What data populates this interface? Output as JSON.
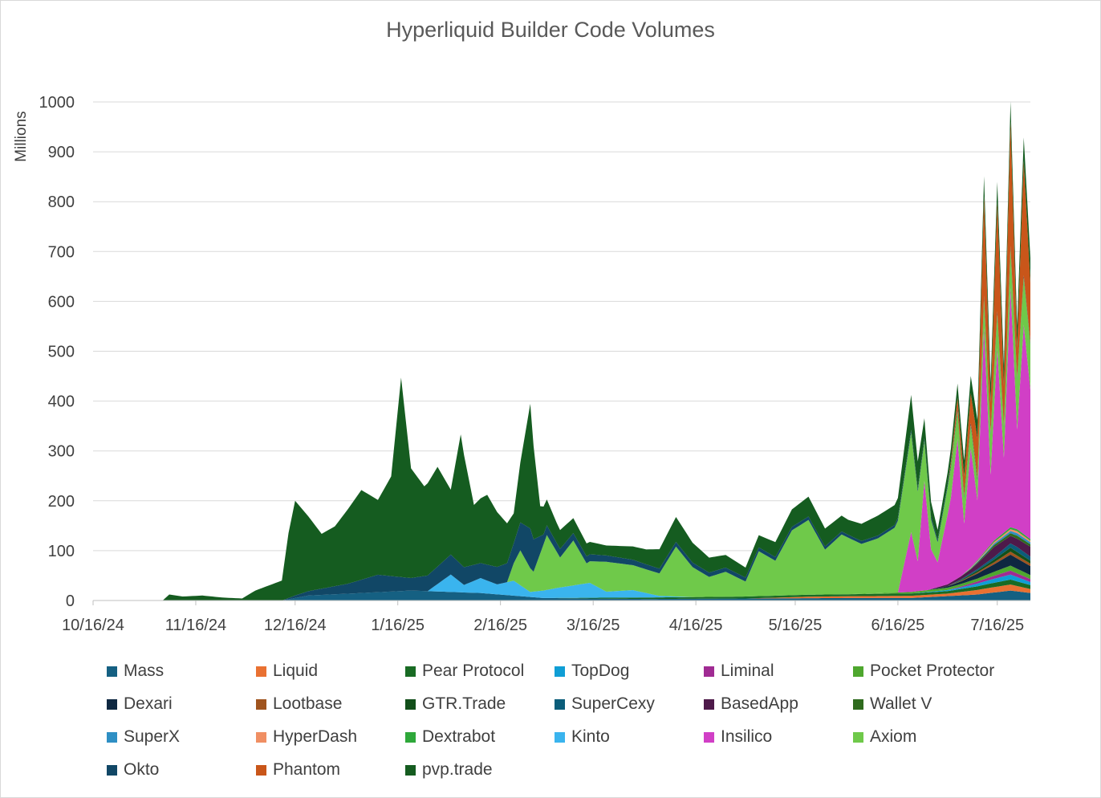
{
  "chart_data": {
    "type": "area",
    "stacked": true,
    "title": "Hyperliquid Builder Code Volumes",
    "ylabel": "Millions",
    "xlabel": "",
    "x_start": "2024-10-16",
    "x_end": "2025-07-26",
    "x_ticks": [
      "10/16/24",
      "11/16/24",
      "12/16/24",
      "1/16/25",
      "2/16/25",
      "3/16/25",
      "4/16/25",
      "5/16/25",
      "6/16/25",
      "7/16/25"
    ],
    "y_ticks": [
      0,
      100,
      200,
      300,
      400,
      500,
      600,
      700,
      800,
      900,
      1000
    ],
    "ylim": [
      0,
      1000
    ],
    "grid": true,
    "legend_position": "bottom",
    "legend": [
      {
        "name": "Mass",
        "color": "#156082"
      },
      {
        "name": "Liquid",
        "color": "#e97132"
      },
      {
        "name": "Pear Protocol",
        "color": "#196b24"
      },
      {
        "name": "TopDog",
        "color": "#0f9ed5"
      },
      {
        "name": "Liminal",
        "color": "#a02b93"
      },
      {
        "name": "Pocket Protector",
        "color": "#4ea72e"
      },
      {
        "name": "Dexari",
        "color": "#0e2841"
      },
      {
        "name": "Lootbase",
        "color": "#a0541e"
      },
      {
        "name": "GTR.Trade",
        "color": "#124f1a"
      },
      {
        "name": "SuperCexy",
        "color": "#0b5d7a"
      },
      {
        "name": "BasedApp",
        "color": "#4e1a4a"
      },
      {
        "name": "Wallet V",
        "color": "#2f6b1e"
      },
      {
        "name": "SuperX",
        "color": "#2e8fc4"
      },
      {
        "name": "HyperDash",
        "color": "#f08f63"
      },
      {
        "name": "Dextrabot",
        "color": "#2ea83a"
      },
      {
        "name": "Kinto",
        "color": "#3ab4ee"
      },
      {
        "name": "Insilico",
        "color": "#d13fc6"
      },
      {
        "name": "Axiom",
        "color": "#6fc94a"
      },
      {
        "name": "Okto",
        "color": "#114766"
      },
      {
        "name": "Phantom",
        "color": "#c9561a"
      },
      {
        "name": "pvp.trade",
        "color": "#155c20"
      }
    ],
    "series": [
      {
        "name": "Mass",
        "color": "#156082",
        "points": [
          [
            "2024-12-12",
            0
          ],
          [
            "2024-12-20",
            10
          ],
          [
            "2025-01-05",
            15
          ],
          [
            "2025-01-20",
            20
          ],
          [
            "2025-02-10",
            15
          ],
          [
            "2025-03-01",
            5
          ],
          [
            "2025-04-01",
            3
          ],
          [
            "2025-05-01",
            4
          ],
          [
            "2025-06-01",
            5
          ],
          [
            "2025-06-20",
            5
          ],
          [
            "2025-07-10",
            12
          ],
          [
            "2025-07-20",
            20
          ],
          [
            "2025-07-26",
            15
          ]
        ]
      },
      {
        "name": "Liquid",
        "color": "#e97132",
        "points": [
          [
            "2025-05-01",
            0
          ],
          [
            "2025-05-20",
            3
          ],
          [
            "2025-06-10",
            4
          ],
          [
            "2025-07-01",
            5
          ],
          [
            "2025-07-12",
            10
          ],
          [
            "2025-07-20",
            12
          ],
          [
            "2025-07-26",
            8
          ]
        ]
      },
      {
        "name": "Pear Protocol",
        "color": "#196b24",
        "points": [
          [
            "2025-03-01",
            0
          ],
          [
            "2025-04-01",
            3
          ],
          [
            "2025-05-01",
            4
          ],
          [
            "2025-06-01",
            4
          ],
          [
            "2025-07-01",
            5
          ],
          [
            "2025-07-20",
            10
          ],
          [
            "2025-07-26",
            8
          ]
        ]
      },
      {
        "name": "TopDog",
        "color": "#0f9ed5",
        "points": [
          [
            "2025-06-20",
            0
          ],
          [
            "2025-07-05",
            3
          ],
          [
            "2025-07-15",
            8
          ],
          [
            "2025-07-20",
            10
          ],
          [
            "2025-07-26",
            6
          ]
        ]
      },
      {
        "name": "Liminal",
        "color": "#a02b93",
        "points": [
          [
            "2025-07-01",
            0
          ],
          [
            "2025-07-10",
            4
          ],
          [
            "2025-07-20",
            8
          ],
          [
            "2025-07-26",
            6
          ]
        ]
      },
      {
        "name": "Pocket Protector",
        "color": "#4ea72e",
        "points": [
          [
            "2025-06-01",
            0
          ],
          [
            "2025-06-20",
            3
          ],
          [
            "2025-07-10",
            6
          ],
          [
            "2025-07-20",
            10
          ],
          [
            "2025-07-26",
            8
          ]
        ]
      },
      {
        "name": "Dexari",
        "color": "#0e2841",
        "points": [
          [
            "2025-06-25",
            0
          ],
          [
            "2025-07-05",
            5
          ],
          [
            "2025-07-15",
            15
          ],
          [
            "2025-07-20",
            22
          ],
          [
            "2025-07-26",
            18
          ]
        ]
      },
      {
        "name": "Lootbase",
        "color": "#a0541e",
        "points": [
          [
            "2025-07-01",
            0
          ],
          [
            "2025-07-12",
            3
          ],
          [
            "2025-07-20",
            6
          ],
          [
            "2025-07-26",
            5
          ]
        ]
      },
      {
        "name": "GTR.Trade",
        "color": "#124f1a",
        "points": [
          [
            "2025-07-01",
            0
          ],
          [
            "2025-07-12",
            4
          ],
          [
            "2025-07-20",
            8
          ],
          [
            "2025-07-26",
            6
          ]
        ]
      },
      {
        "name": "SuperCexy",
        "color": "#0b5d7a",
        "points": [
          [
            "2025-07-01",
            0
          ],
          [
            "2025-07-15",
            5
          ],
          [
            "2025-07-22",
            10
          ],
          [
            "2025-07-26",
            8
          ]
        ]
      },
      {
        "name": "BasedApp",
        "color": "#4e1a4a",
        "points": [
          [
            "2025-06-25",
            0
          ],
          [
            "2025-07-08",
            8
          ],
          [
            "2025-07-15",
            20
          ],
          [
            "2025-07-20",
            15
          ],
          [
            "2025-07-26",
            20
          ]
        ]
      },
      {
        "name": "Wallet V",
        "color": "#2f6b1e",
        "points": [
          [
            "2025-07-05",
            0
          ],
          [
            "2025-07-15",
            4
          ],
          [
            "2025-07-22",
            6
          ],
          [
            "2025-07-26",
            5
          ]
        ]
      },
      {
        "name": "SuperX",
        "color": "#2e8fc4",
        "points": [
          [
            "2025-07-05",
            0
          ],
          [
            "2025-07-15",
            3
          ],
          [
            "2025-07-22",
            5
          ],
          [
            "2025-07-26",
            4
          ]
        ]
      },
      {
        "name": "HyperDash",
        "color": "#f08f63",
        "points": [
          [
            "2025-07-05",
            0
          ],
          [
            "2025-07-15",
            3
          ],
          [
            "2025-07-22",
            4
          ],
          [
            "2025-07-26",
            3
          ]
        ]
      },
      {
        "name": "Dextrabot",
        "color": "#2ea83a",
        "points": [
          [
            "2025-07-05",
            0
          ],
          [
            "2025-07-15",
            3
          ],
          [
            "2025-07-22",
            4
          ],
          [
            "2025-07-26",
            3
          ]
        ]
      },
      {
        "name": "Kinto",
        "color": "#3ab4ee",
        "points": [
          [
            "2025-01-25",
            0
          ],
          [
            "2025-02-01",
            35
          ],
          [
            "2025-02-05",
            15
          ],
          [
            "2025-02-10",
            30
          ],
          [
            "2025-02-15",
            20
          ],
          [
            "2025-02-20",
            30
          ],
          [
            "2025-02-25",
            10
          ],
          [
            "2025-03-05",
            20
          ],
          [
            "2025-03-10",
            25
          ],
          [
            "2025-03-15",
            30
          ],
          [
            "2025-03-20",
            12
          ],
          [
            "2025-03-28",
            15
          ],
          [
            "2025-04-05",
            3
          ],
          [
            "2025-04-15",
            0
          ]
        ]
      },
      {
        "name": "Insilico",
        "color": "#d13fc6",
        "points": [
          [
            "2025-06-16",
            0
          ],
          [
            "2025-06-20",
            120
          ],
          [
            "2025-06-22",
            60
          ],
          [
            "2025-06-24",
            220
          ],
          [
            "2025-06-26",
            80
          ],
          [
            "2025-06-28",
            50
          ],
          [
            "2025-07-02",
            170
          ],
          [
            "2025-07-04",
            280
          ],
          [
            "2025-07-06",
            100
          ],
          [
            "2025-07-08",
            240
          ],
          [
            "2025-07-10",
            120
          ],
          [
            "2025-07-12",
            450
          ],
          [
            "2025-07-14",
            140
          ],
          [
            "2025-07-16",
            380
          ],
          [
            "2025-07-18",
            150
          ],
          [
            "2025-07-20",
            480
          ],
          [
            "2025-07-22",
            200
          ],
          [
            "2025-07-24",
            420
          ],
          [
            "2025-07-26",
            300
          ]
        ]
      },
      {
        "name": "Axiom",
        "color": "#6fc94a",
        "points": [
          [
            "2025-02-18",
            0
          ],
          [
            "2025-02-22",
            70
          ],
          [
            "2025-02-26",
            40
          ],
          [
            "2025-03-02",
            110
          ],
          [
            "2025-03-06",
            60
          ],
          [
            "2025-03-10",
            90
          ],
          [
            "2025-03-14",
            40
          ],
          [
            "2025-03-20",
            60
          ],
          [
            "2025-03-28",
            50
          ],
          [
            "2025-04-05",
            45
          ],
          [
            "2025-04-10",
            100
          ],
          [
            "2025-04-15",
            60
          ],
          [
            "2025-04-20",
            40
          ],
          [
            "2025-04-25",
            50
          ],
          [
            "2025-05-01",
            30
          ],
          [
            "2025-05-05",
            90
          ],
          [
            "2025-05-10",
            70
          ],
          [
            "2025-05-15",
            130
          ],
          [
            "2025-05-20",
            150
          ],
          [
            "2025-05-25",
            90
          ],
          [
            "2025-05-30",
            120
          ],
          [
            "2025-06-05",
            100
          ],
          [
            "2025-06-10",
            110
          ],
          [
            "2025-06-15",
            130
          ],
          [
            "2025-06-20",
            200
          ],
          [
            "2025-06-24",
            80
          ],
          [
            "2025-06-28",
            40
          ],
          [
            "2025-07-02",
            60
          ],
          [
            "2025-07-06",
            50
          ],
          [
            "2025-07-10",
            40
          ],
          [
            "2025-07-14",
            80
          ],
          [
            "2025-07-18",
            60
          ],
          [
            "2025-07-22",
            100
          ],
          [
            "2025-07-26",
            90
          ]
        ]
      },
      {
        "name": "Okto",
        "color": "#114766",
        "points": [
          [
            "2024-12-12",
            0
          ],
          [
            "2024-12-16",
            5
          ],
          [
            "2025-01-01",
            20
          ],
          [
            "2025-01-10",
            35
          ],
          [
            "2025-01-20",
            25
          ],
          [
            "2025-02-01",
            40
          ],
          [
            "2025-02-10",
            30
          ],
          [
            "2025-02-20",
            40
          ],
          [
            "2025-02-25",
            80
          ],
          [
            "2025-03-01",
            20
          ],
          [
            "2025-03-10",
            15
          ],
          [
            "2025-04-01",
            10
          ],
          [
            "2025-05-01",
            8
          ],
          [
            "2025-06-01",
            6
          ],
          [
            "2025-07-01",
            5
          ],
          [
            "2025-07-26",
            4
          ]
        ]
      },
      {
        "name": "Phantom",
        "color": "#c9561a",
        "points": [
          [
            "2025-07-01",
            0
          ],
          [
            "2025-07-05",
            30
          ],
          [
            "2025-07-08",
            60
          ],
          [
            "2025-07-10",
            80
          ],
          [
            "2025-07-12",
            200
          ],
          [
            "2025-07-14",
            60
          ],
          [
            "2025-07-16",
            220
          ],
          [
            "2025-07-18",
            80
          ],
          [
            "2025-07-20",
            250
          ],
          [
            "2025-07-22",
            60
          ],
          [
            "2025-07-24",
            230
          ],
          [
            "2025-07-26",
            120
          ]
        ]
      },
      {
        "name": "pvp.trade",
        "color": "#155c20",
        "points": [
          [
            "2024-11-06",
            0
          ],
          [
            "2024-11-08",
            12
          ],
          [
            "2024-11-12",
            8
          ],
          [
            "2024-11-18",
            10
          ],
          [
            "2024-11-24",
            6
          ],
          [
            "2024-11-30",
            4
          ],
          [
            "2024-12-04",
            20
          ],
          [
            "2024-12-08",
            30
          ],
          [
            "2024-12-12",
            40
          ],
          [
            "2024-12-14",
            130
          ],
          [
            "2024-12-16",
            190
          ],
          [
            "2024-12-20",
            150
          ],
          [
            "2024-12-24",
            110
          ],
          [
            "2024-12-28",
            120
          ],
          [
            "2025-01-01",
            150
          ],
          [
            "2025-01-05",
            180
          ],
          [
            "2025-01-10",
            150
          ],
          [
            "2025-01-14",
            200
          ],
          [
            "2025-01-17",
            400
          ],
          [
            "2025-01-20",
            220
          ],
          [
            "2025-01-24",
            180
          ],
          [
            "2025-01-28",
            200
          ],
          [
            "2025-02-01",
            130
          ],
          [
            "2025-02-04",
            260
          ],
          [
            "2025-02-08",
            120
          ],
          [
            "2025-02-12",
            140
          ],
          [
            "2025-02-16",
            100
          ],
          [
            "2025-02-20",
            60
          ],
          [
            "2025-02-22",
            120
          ],
          [
            "2025-02-25",
            250
          ],
          [
            "2025-02-28",
            60
          ],
          [
            "2025-03-05",
            40
          ],
          [
            "2025-03-10",
            30
          ],
          [
            "2025-03-20",
            20
          ],
          [
            "2025-04-01",
            30
          ],
          [
            "2025-04-10",
            50
          ],
          [
            "2025-04-20",
            30
          ],
          [
            "2025-05-01",
            20
          ],
          [
            "2025-05-10",
            30
          ],
          [
            "2025-05-20",
            40
          ],
          [
            "2025-06-01",
            30
          ],
          [
            "2025-06-10",
            40
          ],
          [
            "2025-06-16",
            40
          ],
          [
            "2025-06-20",
            70
          ],
          [
            "2025-06-24",
            40
          ],
          [
            "2025-06-28",
            20
          ],
          [
            "2025-07-05",
            30
          ],
          [
            "2025-07-12",
            40
          ],
          [
            "2025-07-20",
            40
          ],
          [
            "2025-07-26",
            50
          ]
        ]
      }
    ]
  }
}
